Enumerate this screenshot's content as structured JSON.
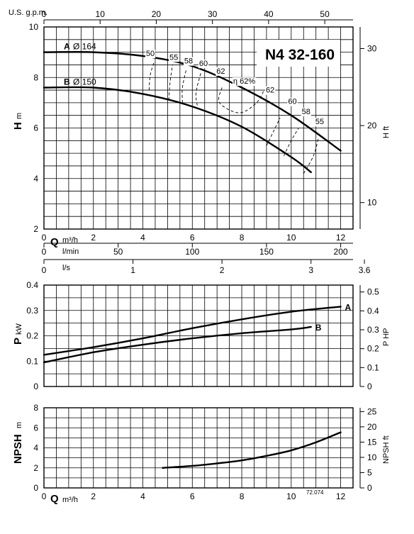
{
  "chart_data": [
    {
      "type": "line",
      "title": "N4 32-160",
      "ylabel": "H",
      "yunit": "m",
      "ylabel_right": "H ft",
      "xlabel": "Q",
      "xunit": "m³/h",
      "xlim": [
        0,
        12.5
      ],
      "ylim": [
        2,
        10
      ],
      "xticks": [
        "0",
        "2",
        "4",
        "6",
        "8",
        "10",
        "12"
      ],
      "yticks": [
        "2",
        "4",
        "6",
        "8",
        "10"
      ],
      "yticks_right": [
        "10",
        "20",
        "30"
      ],
      "top_axis": {
        "label": "U.S. g.p.m.",
        "ticks": [
          "0",
          "10",
          "20",
          "30",
          "40",
          "50"
        ]
      },
      "series": [
        {
          "name": "A",
          "label": "Ø 164",
          "x": [
            0,
            2,
            4,
            6,
            8,
            10,
            12
          ],
          "y": [
            9.0,
            9.0,
            8.85,
            8.45,
            7.6,
            6.5,
            5.1
          ]
        },
        {
          "name": "B",
          "label": "Ø 150",
          "x": [
            0,
            2,
            4,
            6,
            8,
            10,
            10.8
          ],
          "y": [
            7.6,
            7.6,
            7.35,
            6.85,
            6.05,
            4.85,
            4.25
          ]
        }
      ],
      "efficiency_labels": [
        "50",
        "55",
        "58",
        "60",
        "62",
        "η 62%",
        "62",
        "60",
        "58",
        "55"
      ],
      "efficiency_best": {
        "label": "η 62%",
        "value": 62
      }
    },
    {
      "type": "line",
      "ylabel": "P",
      "yunit": "kW",
      "ylabel_right": "P HP",
      "xlim": [
        0,
        12.5
      ],
      "ylim": [
        0,
        0.4
      ],
      "yticks": [
        "0",
        "0.1",
        "0.2",
        "0.3",
        "0.4"
      ],
      "yticks_right": [
        "0",
        "0.1",
        "0.2",
        "0.3",
        "0.4",
        "0.5"
      ],
      "series": [
        {
          "name": "A",
          "x": [
            0,
            2,
            4,
            6,
            8,
            10,
            12
          ],
          "y": [
            0.125,
            0.155,
            0.19,
            0.23,
            0.265,
            0.295,
            0.315
          ]
        },
        {
          "name": "B",
          "x": [
            0,
            2,
            4,
            6,
            8,
            10,
            10.8
          ],
          "y": [
            0.095,
            0.135,
            0.165,
            0.19,
            0.21,
            0.225,
            0.235
          ]
        }
      ]
    },
    {
      "type": "line",
      "ylabel": "NPSH",
      "yunit": "m",
      "ylabel_right": "NPSH ft",
      "xlabel": "Q",
      "xunit": "m³/h",
      "xlim": [
        0,
        12.5
      ],
      "ylim": [
        0,
        8
      ],
      "xticks": [
        "0",
        "2",
        "4",
        "6",
        "8",
        "10",
        "12"
      ],
      "yticks": [
        "0",
        "2",
        "4",
        "6",
        "8"
      ],
      "yticks_right": [
        "0",
        "5",
        "10",
        "15",
        "20",
        "25"
      ],
      "series": [
        {
          "x": [
            4.8,
            6,
            7,
            8,
            9,
            10,
            11,
            12
          ],
          "y": [
            2.0,
            2.2,
            2.45,
            2.75,
            3.2,
            3.75,
            4.55,
            5.55
          ]
        }
      ]
    }
  ],
  "flow_axes": {
    "lmin": {
      "label": "l/min",
      "ticks": [
        "0",
        "50",
        "100",
        "150",
        "200"
      ]
    },
    "ls": {
      "label": "l/s",
      "ticks": [
        "0",
        "1",
        "2",
        "3",
        "3.6"
      ]
    }
  },
  "ref_code": "72.074"
}
